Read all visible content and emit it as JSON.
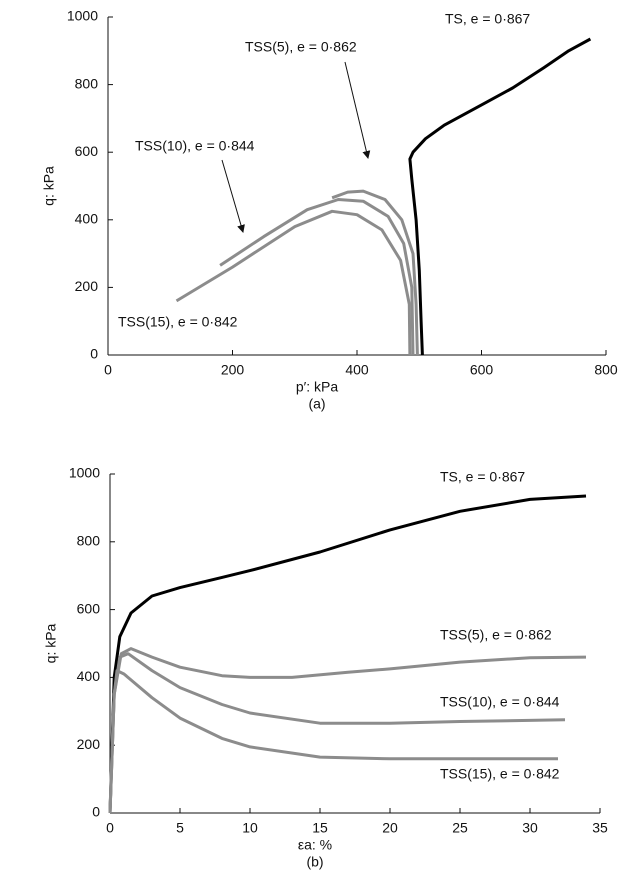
{
  "chart_data": [
    {
      "type": "line",
      "caption": "(a)",
      "x_label": "p′: kPa",
      "y_label": "q: kPa",
      "xlim": [
        0,
        800
      ],
      "xticks": [
        0,
        200,
        400,
        600,
        800
      ],
      "ylim": [
        0,
        1000
      ],
      "yticks": [
        0,
        200,
        400,
        600,
        800,
        1000
      ],
      "series": [
        {
          "name": "TS, e = 0·867",
          "color": "#000000",
          "x": [
            505,
            503,
            500,
            495,
            488,
            485,
            490,
            510,
            540,
            600,
            650,
            700,
            740,
            775
          ],
          "values": [
            0,
            100,
            250,
            400,
            520,
            580,
            600,
            640,
            680,
            740,
            790,
            850,
            900,
            935
          ]
        },
        {
          "name": "TSS(5), e = 0·862",
          "color": "#8c8c8c",
          "x": [
            497,
            495,
            490,
            472,
            445,
            410,
            385,
            360
          ],
          "values": [
            0,
            150,
            300,
            400,
            460,
            485,
            482,
            465
          ]
        },
        {
          "name": "TSS(10), e = 0·844",
          "color": "#8c8c8c",
          "x": [
            490,
            488,
            475,
            450,
            410,
            370,
            320,
            250,
            180
          ],
          "values": [
            0,
            200,
            330,
            410,
            455,
            460,
            430,
            350,
            265
          ]
        },
        {
          "name": "TSS(15), e = 0·842",
          "color": "#8c8c8c",
          "x": [
            485,
            484,
            470,
            440,
            400,
            360,
            300,
            200,
            110
          ],
          "values": [
            0,
            150,
            280,
            370,
            415,
            425,
            380,
            260,
            160
          ]
        }
      ]
    },
    {
      "type": "line",
      "caption": "(b)",
      "x_label": "εa: %",
      "y_label": "q: kPa",
      "xlim": [
        0,
        35
      ],
      "xticks": [
        0,
        5,
        10,
        15,
        20,
        25,
        30,
        35
      ],
      "ylim": [
        0,
        1000
      ],
      "yticks": [
        0,
        200,
        400,
        600,
        800,
        1000
      ],
      "series": [
        {
          "name": "TS, e = 0·867",
          "color": "#000000",
          "x": [
            0,
            0.3,
            0.7,
            1.5,
            3,
            5,
            8,
            10,
            15,
            20,
            25,
            30,
            34
          ],
          "values": [
            0,
            400,
            520,
            590,
            640,
            665,
            695,
            715,
            770,
            835,
            890,
            925,
            935
          ]
        },
        {
          "name": "TSS(5), e = 0·862",
          "color": "#8c8c8c",
          "x": [
            0,
            0.3,
            0.8,
            1.5,
            3,
            5,
            8,
            10,
            13,
            17,
            20,
            25,
            30,
            34
          ],
          "values": [
            0,
            350,
            470,
            485,
            460,
            430,
            405,
            400,
            400,
            415,
            425,
            445,
            458,
            460
          ]
        },
        {
          "name": "TSS(10), e = 0·844",
          "color": "#8c8c8c",
          "x": [
            0,
            0.3,
            0.7,
            1.3,
            3,
            5,
            8,
            10,
            15,
            20,
            25,
            32.5
          ],
          "values": [
            0,
            350,
            460,
            470,
            420,
            370,
            320,
            295,
            265,
            265,
            270,
            275
          ]
        },
        {
          "name": "TSS(15), e = 0·842",
          "color": "#8c8c8c",
          "x": [
            0,
            0.3,
            0.5,
            1,
            3,
            5,
            8,
            10,
            15,
            20,
            25,
            32
          ],
          "values": [
            0,
            350,
            420,
            410,
            340,
            280,
            220,
            195,
            165,
            160,
            160,
            160
          ]
        }
      ]
    }
  ]
}
